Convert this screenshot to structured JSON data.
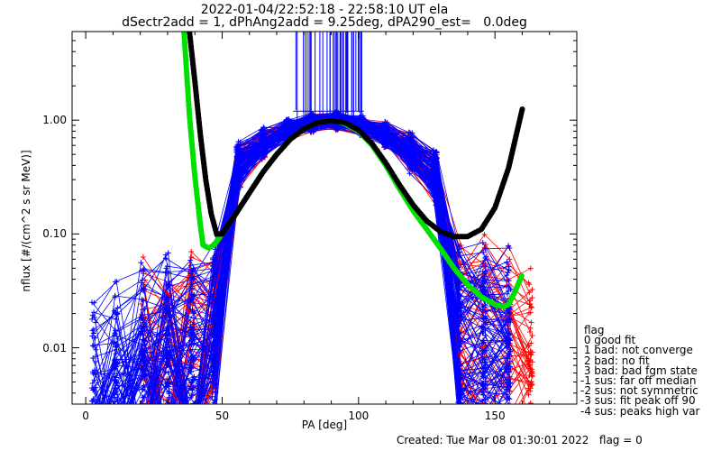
{
  "chart_data": {
    "type": "line",
    "title": "2022-01-04/22:52:18 - 22:58:10 UT ela",
    "subtitle": "dSectr2add = 1, dPhAng2add = 9.25deg, dPA290_est=   0.0deg",
    "xlabel": "PA [deg]",
    "ylabel": "nflux [#/(cm^2 s sr MeV)]",
    "xlim": [
      -5,
      180
    ],
    "ylim": [
      0.0032,
      6.0
    ],
    "y_scale": "log",
    "grid": false,
    "x_ticks": [
      0,
      50,
      100,
      150
    ],
    "x_tick_labels": [
      "0",
      "50",
      "100",
      "150"
    ],
    "y_ticks": [
      0.01,
      0.1,
      1.0
    ],
    "y_tick_labels": [
      "0.01",
      "0.10",
      "1.00"
    ],
    "colors": {
      "red_traces": "#ff0000",
      "blue_traces": "#0000ff",
      "fit_green": "#00e000",
      "fit_black": "#000000"
    },
    "series": [
      {
        "color": "#00e000",
        "style": "thick-dotted",
        "x": [
          36,
          38,
          40,
          42,
          43,
          45,
          47,
          50,
          55,
          60,
          65,
          70,
          75,
          80,
          85,
          88,
          90,
          92,
          95,
          100,
          105,
          110,
          115,
          120,
          125,
          130,
          135,
          140,
          145,
          150,
          153,
          155,
          157,
          160
        ],
        "y": [
          6.0,
          1.1,
          0.32,
          0.12,
          0.08,
          0.075,
          0.08,
          0.1,
          0.15,
          0.23,
          0.35,
          0.5,
          0.68,
          0.84,
          0.95,
          0.98,
          0.99,
          0.98,
          0.93,
          0.8,
          0.6,
          0.4,
          0.25,
          0.16,
          0.11,
          0.075,
          0.05,
          0.036,
          0.028,
          0.024,
          0.023,
          0.024,
          0.03,
          0.044
        ]
      },
      {
        "color": "#000000",
        "style": "thick-dotted",
        "x": [
          38,
          40,
          42,
          44,
          46,
          48,
          50,
          55,
          60,
          65,
          70,
          75,
          80,
          85,
          90,
          95,
          100,
          105,
          110,
          115,
          120,
          125,
          130,
          135,
          140,
          145,
          150,
          155,
          160
        ],
        "y": [
          6.0,
          2.2,
          0.75,
          0.3,
          0.15,
          0.1,
          0.1,
          0.15,
          0.23,
          0.35,
          0.5,
          0.68,
          0.84,
          0.95,
          0.99,
          0.95,
          0.82,
          0.62,
          0.42,
          0.27,
          0.18,
          0.13,
          0.105,
          0.095,
          0.095,
          0.11,
          0.17,
          0.38,
          1.25
        ]
      }
    ]
  },
  "legend": {
    "title": "flag",
    "entries": [
      " 0 good fit",
      " 1 bad: not converge",
      " 2 bad: no fit",
      " 3 bad: bad fgm state",
      "-1 sus: far off median",
      "-2 sus: not symmetric",
      "-3 sus: fit peak off 90",
      "-4 sus: peaks high var"
    ]
  },
  "footer": "Created: Tue Mar 08 01:30:01 2022   flag = 0"
}
